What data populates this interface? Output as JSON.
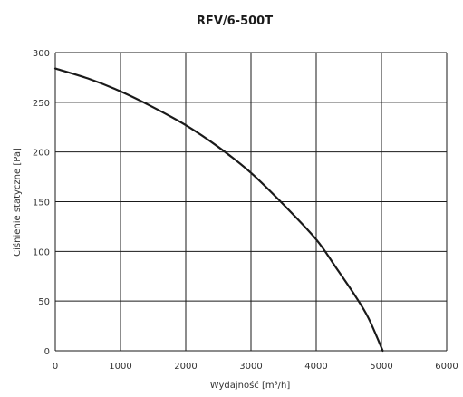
{
  "chart_data": {
    "type": "line",
    "title": "RFV/6-500T",
    "xlabel": "Wydajność [m³/h]",
    "ylabel": "Ciśnienie statyczne [Pa]",
    "xlim": [
      0,
      6000
    ],
    "ylim": [
      0,
      300
    ],
    "xticks": [
      0,
      1000,
      2000,
      3000,
      4000,
      5000,
      6000
    ],
    "yticks": [
      0,
      50,
      100,
      150,
      200,
      250,
      300
    ],
    "grid": true,
    "legend": "none",
    "line_color": "#1a1a1a",
    "series": [
      {
        "x": [
          0,
          500,
          1000,
          1500,
          2000,
          2500,
          3000,
          3500,
          4000,
          4300,
          4600,
          4800,
          5020
        ],
        "y": [
          284,
          274,
          261,
          245,
          227,
          205,
          179,
          147,
          112,
          84,
          55,
          33,
          0
        ]
      }
    ]
  }
}
